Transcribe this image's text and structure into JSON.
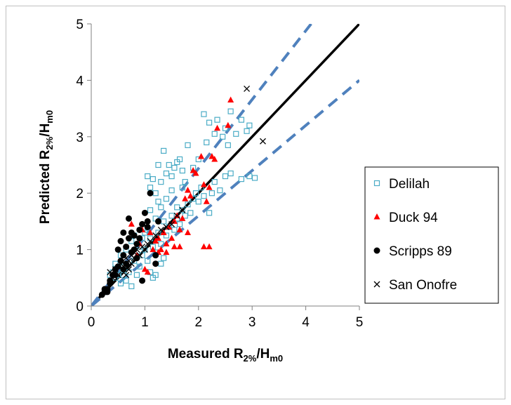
{
  "chart_data": {
    "type": "scatter",
    "title": "",
    "xlabel": {
      "main": "Measured R",
      "sub1": "2%",
      "mid": "/H",
      "sub2": "m0"
    },
    "ylabel": {
      "main": "Predicted R",
      "sub1": "2%",
      "mid": "/H",
      "sub2": "m0"
    },
    "xlim": [
      0,
      5
    ],
    "ylim": [
      0,
      5
    ],
    "xticks": [
      "0",
      "1",
      "2",
      "3",
      "4",
      "5"
    ],
    "yticks": [
      "0",
      "1",
      "2",
      "3",
      "4",
      "5"
    ],
    "grid": false,
    "legend_position": "right",
    "reference_lines": [
      {
        "kind": "1:1",
        "style": "solid",
        "color": "#000000",
        "x": [
          0,
          5
        ],
        "y": [
          0,
          5
        ]
      },
      {
        "kind": "upper bound",
        "style": "dashed",
        "color": "#4f81bd",
        "x": [
          0,
          4.1
        ],
        "y": [
          0,
          5
        ]
      },
      {
        "kind": "lower bound",
        "style": "dashed",
        "color": "#4f81bd",
        "x": [
          0,
          5
        ],
        "y": [
          0,
          4
        ]
      }
    ],
    "series": [
      {
        "name": "Delilah",
        "marker": "square-open",
        "color": "#4bacc6",
        "points": [
          [
            0.45,
            0.5
          ],
          [
            0.55,
            0.4
          ],
          [
            0.65,
            0.45
          ],
          [
            0.75,
            0.35
          ],
          [
            0.6,
            0.7
          ],
          [
            0.7,
            0.6
          ],
          [
            0.8,
            0.8
          ],
          [
            0.85,
            0.55
          ],
          [
            0.9,
            0.7
          ],
          [
            0.95,
            0.9
          ],
          [
            1.0,
            1.0
          ],
          [
            1.05,
            0.8
          ],
          [
            1.1,
            1.2
          ],
          [
            1.15,
            1.05
          ],
          [
            1.2,
            0.95
          ],
          [
            1.25,
            1.3
          ],
          [
            1.3,
            1.1
          ],
          [
            1.35,
            1.5
          ],
          [
            1.4,
            1.25
          ],
          [
            1.45,
            1.4
          ],
          [
            1.5,
            1.6
          ],
          [
            1.55,
            1.35
          ],
          [
            1.6,
            1.55
          ],
          [
            1.65,
            1.45
          ],
          [
            1.7,
            1.7
          ],
          [
            1.75,
            1.6
          ],
          [
            1.8,
            1.8
          ],
          [
            1.85,
            1.65
          ],
          [
            1.9,
            1.9
          ],
          [
            1.95,
            2.0
          ],
          [
            2.0,
            1.85
          ],
          [
            2.05,
            2.1
          ],
          [
            2.1,
            1.95
          ],
          [
            2.2,
            1.65
          ],
          [
            2.25,
            2.0
          ],
          [
            2.3,
            2.2
          ],
          [
            2.4,
            2.05
          ],
          [
            2.5,
            2.3
          ],
          [
            2.6,
            2.35
          ],
          [
            2.8,
            2.25
          ],
          [
            2.95,
            2.3
          ],
          [
            3.05,
            2.27
          ],
          [
            1.05,
            2.3
          ],
          [
            1.1,
            2.1
          ],
          [
            1.15,
            2.25
          ],
          [
            1.2,
            2.0
          ],
          [
            1.25,
            2.5
          ],
          [
            1.3,
            2.2
          ],
          [
            1.35,
            2.75
          ],
          [
            1.4,
            2.35
          ],
          [
            1.45,
            2.5
          ],
          [
            1.5,
            2.3
          ],
          [
            1.55,
            2.45
          ],
          [
            1.6,
            2.55
          ],
          [
            1.65,
            2.6
          ],
          [
            1.7,
            2.4
          ],
          [
            1.75,
            2.2
          ],
          [
            1.8,
            2.85
          ],
          [
            1.9,
            2.45
          ],
          [
            2.0,
            2.6
          ],
          [
            2.1,
            3.4
          ],
          [
            2.15,
            2.9
          ],
          [
            2.2,
            3.25
          ],
          [
            2.3,
            3.05
          ],
          [
            2.35,
            3.3
          ],
          [
            2.45,
            3.0
          ],
          [
            2.5,
            3.15
          ],
          [
            2.55,
            2.85
          ],
          [
            2.6,
            3.45
          ],
          [
            2.7,
            3.05
          ],
          [
            2.8,
            3.3
          ],
          [
            2.9,
            3.1
          ],
          [
            2.95,
            3.2
          ],
          [
            1.3,
            1.75
          ],
          [
            1.4,
            1.9
          ],
          [
            1.5,
            2.05
          ],
          [
            1.6,
            1.75
          ],
          [
            1.7,
            2.1
          ],
          [
            1.1,
            1.7
          ],
          [
            1.2,
            1.55
          ],
          [
            1.25,
            1.85
          ],
          [
            0.9,
            1.05
          ],
          [
            0.95,
            1.2
          ],
          [
            1.0,
            1.3
          ],
          [
            1.05,
            1.35
          ],
          [
            1.1,
            0.6
          ],
          [
            1.15,
            0.5
          ],
          [
            1.2,
            0.55
          ],
          [
            1.3,
            0.75
          ],
          [
            1.35,
            0.85
          ],
          [
            0.55,
            0.9
          ],
          [
            0.65,
            1.0
          ],
          [
            0.75,
            1.15
          ],
          [
            0.8,
            1.25
          ],
          [
            0.5,
            0.55
          ],
          [
            0.45,
            0.75
          ],
          [
            0.4,
            0.6
          ],
          [
            0.35,
            0.55
          ],
          [
            0.5,
            0.65
          ],
          [
            0.6,
            0.55
          ]
        ]
      },
      {
        "name": "Duck 94",
        "marker": "triangle",
        "color": "#ff0000",
        "points": [
          [
            0.75,
            1.45
          ],
          [
            0.85,
            0.9
          ],
          [
            0.9,
            1.1
          ],
          [
            1.0,
            0.65
          ],
          [
            1.05,
            0.6
          ],
          [
            1.1,
            1.3
          ],
          [
            1.15,
            1.0
          ],
          [
            1.2,
            1.15
          ],
          [
            1.25,
            1.2
          ],
          [
            1.3,
            1.0
          ],
          [
            1.35,
            1.3
          ],
          [
            1.4,
            1.1
          ],
          [
            1.45,
            1.4
          ],
          [
            1.5,
            1.2
          ],
          [
            1.55,
            1.5
          ],
          [
            1.6,
            1.6
          ],
          [
            1.65,
            1.35
          ],
          [
            1.7,
            1.55
          ],
          [
            1.75,
            1.9
          ],
          [
            1.8,
            2.05
          ],
          [
            1.85,
            1.95
          ],
          [
            1.9,
            2.4
          ],
          [
            1.95,
            2.35
          ],
          [
            2.05,
            2.65
          ],
          [
            2.1,
            2.15
          ],
          [
            2.15,
            1.85
          ],
          [
            2.2,
            2.1
          ],
          [
            2.25,
            2.65
          ],
          [
            2.3,
            2.6
          ],
          [
            2.1,
            1.05
          ],
          [
            2.2,
            1.05
          ],
          [
            2.6,
            3.65
          ],
          [
            2.55,
            3.2
          ],
          [
            2.35,
            3.15
          ],
          [
            1.55,
            1.05
          ],
          [
            1.25,
            0.95
          ],
          [
            1.4,
            0.95
          ],
          [
            0.95,
            1.35
          ],
          [
            1.8,
            1.3
          ],
          [
            1.65,
            1.05
          ]
        ]
      },
      {
        "name": "Scripps 89",
        "marker": "circle",
        "color": "#000000",
        "points": [
          [
            0.2,
            0.2
          ],
          [
            0.25,
            0.25
          ],
          [
            0.3,
            0.3
          ],
          [
            0.35,
            0.45
          ],
          [
            0.4,
            0.55
          ],
          [
            0.45,
            0.65
          ],
          [
            0.5,
            0.7
          ],
          [
            0.55,
            0.8
          ],
          [
            0.6,
            0.9
          ],
          [
            0.65,
            1.05
          ],
          [
            0.7,
            1.2
          ],
          [
            0.75,
            1.3
          ],
          [
            0.8,
            1.0
          ],
          [
            0.85,
            1.1
          ],
          [
            0.9,
            1.35
          ],
          [
            0.95,
            1.45
          ],
          [
            1.0,
            1.65
          ],
          [
            1.05,
            1.5
          ],
          [
            1.1,
            2.0
          ],
          [
            0.5,
            1.0
          ],
          [
            0.55,
            1.15
          ],
          [
            0.6,
            1.3
          ],
          [
            0.7,
            1.55
          ],
          [
            0.8,
            1.25
          ],
          [
            0.85,
            0.85
          ],
          [
            0.9,
            1.2
          ],
          [
            0.95,
            0.45
          ],
          [
            1.05,
            1.4
          ],
          [
            1.2,
            0.9
          ],
          [
            1.2,
            0.75
          ],
          [
            1.25,
            1.5
          ],
          [
            0.65,
            0.75
          ],
          [
            0.75,
            0.95
          ],
          [
            0.45,
            0.55
          ],
          [
            0.35,
            0.4
          ],
          [
            0.3,
            0.25
          ],
          [
            0.25,
            0.3
          ],
          [
            0.6,
            0.65
          ]
        ]
      },
      {
        "name": "San Onofre",
        "marker": "x",
        "color": "#000000",
        "points": [
          [
            0.35,
            0.6
          ],
          [
            0.4,
            0.5
          ],
          [
            0.45,
            0.65
          ],
          [
            0.5,
            0.55
          ],
          [
            0.55,
            0.75
          ],
          [
            0.6,
            0.7
          ],
          [
            0.65,
            0.85
          ],
          [
            0.7,
            0.8
          ],
          [
            0.75,
            0.9
          ],
          [
            0.8,
            0.95
          ],
          [
            0.85,
            1.0
          ],
          [
            0.9,
            0.9
          ],
          [
            0.95,
            1.05
          ],
          [
            1.0,
            1.0
          ],
          [
            1.05,
            1.1
          ],
          [
            1.1,
            1.15
          ],
          [
            1.2,
            1.25
          ],
          [
            1.3,
            1.35
          ],
          [
            1.4,
            1.4
          ],
          [
            1.5,
            1.45
          ],
          [
            1.6,
            1.6
          ],
          [
            1.7,
            1.7
          ],
          [
            2.9,
            3.85
          ],
          [
            3.2,
            2.92
          ],
          [
            0.65,
            0.55
          ],
          [
            0.7,
            0.65
          ],
          [
            0.75,
            0.75
          ],
          [
            0.8,
            0.85
          ]
        ]
      }
    ]
  }
}
